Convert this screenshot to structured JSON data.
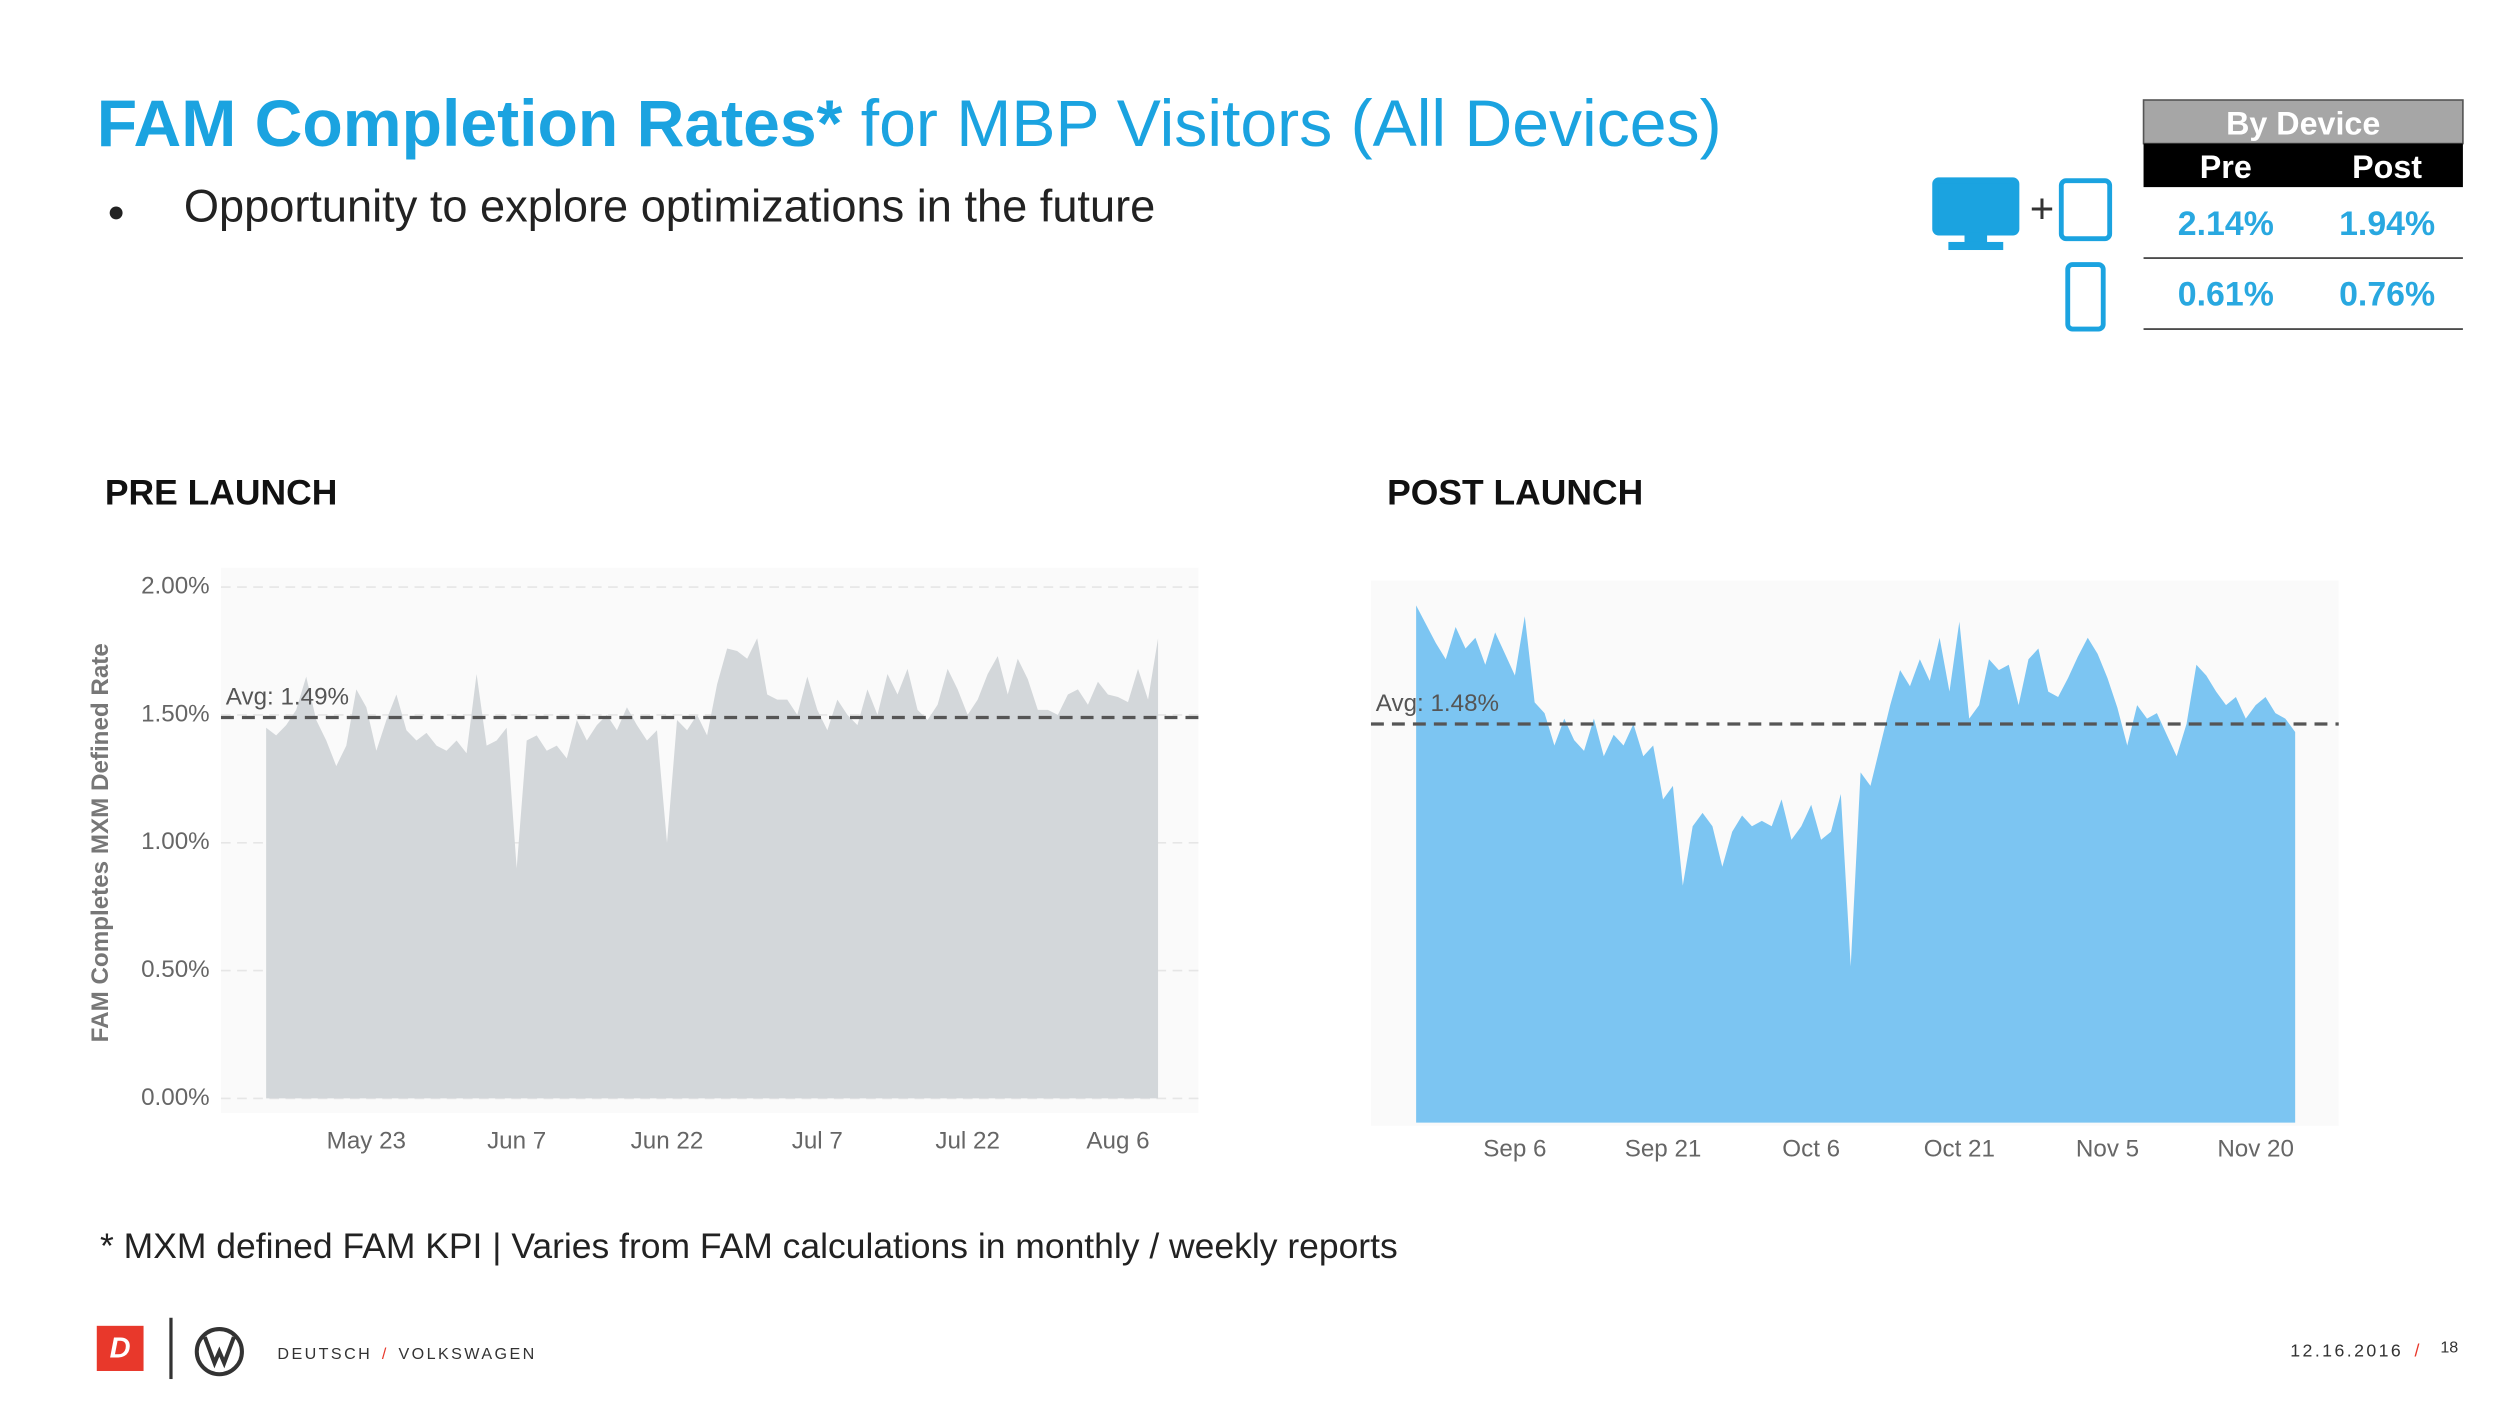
{
  "header": {
    "title_bold": "FAM Completion Rates*",
    "title_rest": " for MBP Visitors (All Devices)",
    "bullet": "Opportunity to explore optimizations in the future"
  },
  "table": {
    "caption": "By Device",
    "columns": [
      "Pre",
      "Post"
    ],
    "rows": [
      [
        "2.14%",
        "1.94%"
      ],
      [
        "0.61%",
        "0.76%"
      ]
    ]
  },
  "chart_data": [
    {
      "type": "area",
      "title": "PRE LAUNCH",
      "y_label": "FAM Completes MXM Defined Rate",
      "color": "#d3d7da",
      "categories": [
        null,
        null,
        null,
        null,
        null,
        null,
        null,
        null,
        null,
        null,
        "May 23",
        null,
        null,
        null,
        null,
        null,
        null,
        null,
        null,
        null,
        null,
        null,
        null,
        null,
        null,
        "Jun 7",
        null,
        null,
        null,
        null,
        null,
        null,
        null,
        null,
        null,
        null,
        null,
        null,
        null,
        null,
        "Jun 22",
        null,
        null,
        null,
        null,
        null,
        null,
        null,
        null,
        null,
        null,
        null,
        null,
        null,
        null,
        "Jul 7",
        null,
        null,
        null,
        null,
        null,
        null,
        null,
        null,
        null,
        null,
        null,
        null,
        null,
        null,
        "Jul 22",
        null,
        null,
        null,
        null,
        null,
        null,
        null,
        null,
        null,
        null,
        null,
        null,
        null,
        null,
        "Aug 6",
        null,
        null,
        null,
        null
      ],
      "values": [
        1.45,
        1.42,
        1.46,
        1.52,
        1.65,
        1.48,
        1.4,
        1.3,
        1.38,
        1.6,
        1.53,
        1.36,
        1.48,
        1.58,
        1.44,
        1.4,
        1.43,
        1.38,
        1.36,
        1.4,
        1.35,
        1.66,
        1.38,
        1.4,
        1.45,
        0.9,
        1.4,
        1.42,
        1.36,
        1.38,
        1.33,
        1.48,
        1.4,
        1.46,
        1.5,
        1.44,
        1.53,
        1.46,
        1.4,
        1.44,
        1.0,
        1.48,
        1.44,
        1.5,
        1.42,
        1.62,
        1.76,
        1.75,
        1.72,
        1.8,
        1.58,
        1.56,
        1.56,
        1.5,
        1.65,
        1.52,
        1.44,
        1.56,
        1.5,
        1.46,
        1.6,
        1.5,
        1.66,
        1.58,
        1.68,
        1.52,
        1.48,
        1.54,
        1.68,
        1.6,
        1.5,
        1.56,
        1.66,
        1.73,
        1.58,
        1.72,
        1.64,
        1.52,
        1.52,
        1.5,
        1.58,
        1.6,
        1.54,
        1.63,
        1.58,
        1.57,
        1.55,
        1.68,
        1.56,
        1.8
      ],
      "ylim": [
        0,
        2
      ],
      "yticks": [
        {
          "value": 0,
          "label": "0.00%"
        },
        {
          "value": 0.5,
          "label": "0.50%"
        },
        {
          "value": 1,
          "label": "1.00%"
        },
        {
          "value": 1.5,
          "label": "1.50%"
        },
        {
          "value": 2,
          "label": "2.00%"
        }
      ],
      "grid": true,
      "average": {
        "value": 1.49,
        "label": "Avg: 1.49%"
      }
    },
    {
      "type": "area",
      "title": "POST LAUNCH",
      "color": "#7cc5f2",
      "categories": [
        null,
        null,
        null,
        null,
        null,
        null,
        null,
        null,
        null,
        null,
        "Sep 6",
        null,
        null,
        null,
        null,
        null,
        null,
        null,
        null,
        null,
        null,
        null,
        null,
        null,
        null,
        "Sep 21",
        null,
        null,
        null,
        null,
        null,
        null,
        null,
        null,
        null,
        null,
        null,
        null,
        null,
        null,
        "Oct 6",
        null,
        null,
        null,
        null,
        null,
        null,
        null,
        null,
        null,
        null,
        null,
        null,
        null,
        null,
        "Oct 21",
        null,
        null,
        null,
        null,
        null,
        null,
        null,
        null,
        null,
        null,
        null,
        null,
        null,
        null,
        "Nov 5",
        null,
        null,
        null,
        null,
        null,
        null,
        null,
        null,
        null,
        null,
        null,
        null,
        null,
        null,
        "Nov 20",
        null,
        null,
        null,
        null
      ],
      "values": [
        1.92,
        1.85,
        1.78,
        1.72,
        1.84,
        1.76,
        1.8,
        1.7,
        1.82,
        1.74,
        1.66,
        1.88,
        1.56,
        1.52,
        1.4,
        1.5,
        1.42,
        1.38,
        1.5,
        1.36,
        1.44,
        1.4,
        1.48,
        1.36,
        1.4,
        1.2,
        1.25,
        0.88,
        1.1,
        1.15,
        1.1,
        0.95,
        1.08,
        1.14,
        1.1,
        1.12,
        1.1,
        1.2,
        1.05,
        1.1,
        1.18,
        1.05,
        1.08,
        1.22,
        0.58,
        1.3,
        1.25,
        1.4,
        1.55,
        1.68,
        1.62,
        1.72,
        1.64,
        1.8,
        1.6,
        1.86,
        1.5,
        1.55,
        1.72,
        1.68,
        1.7,
        1.55,
        1.72,
        1.76,
        1.6,
        1.58,
        1.65,
        1.73,
        1.8,
        1.74,
        1.65,
        1.54,
        1.4,
        1.55,
        1.5,
        1.52,
        1.44,
        1.36,
        1.48,
        1.7,
        1.66,
        1.6,
        1.55,
        1.58,
        1.5,
        1.55,
        1.58,
        1.52,
        1.5,
        1.45
      ],
      "ylim": [
        0,
        2
      ],
      "grid": false,
      "average": {
        "value": 1.48,
        "label": "Avg: 1.48%"
      }
    }
  ],
  "footnote": "* MXM defined FAM KPI | Varies from FAM calculations in monthly / weekly reports",
  "footer": {
    "logo_letter": "D",
    "brand_left": "DEUTSCH",
    "separator": "/",
    "brand_right": "VOLKSWAGEN",
    "date": "12.16.2016",
    "page": "18"
  }
}
